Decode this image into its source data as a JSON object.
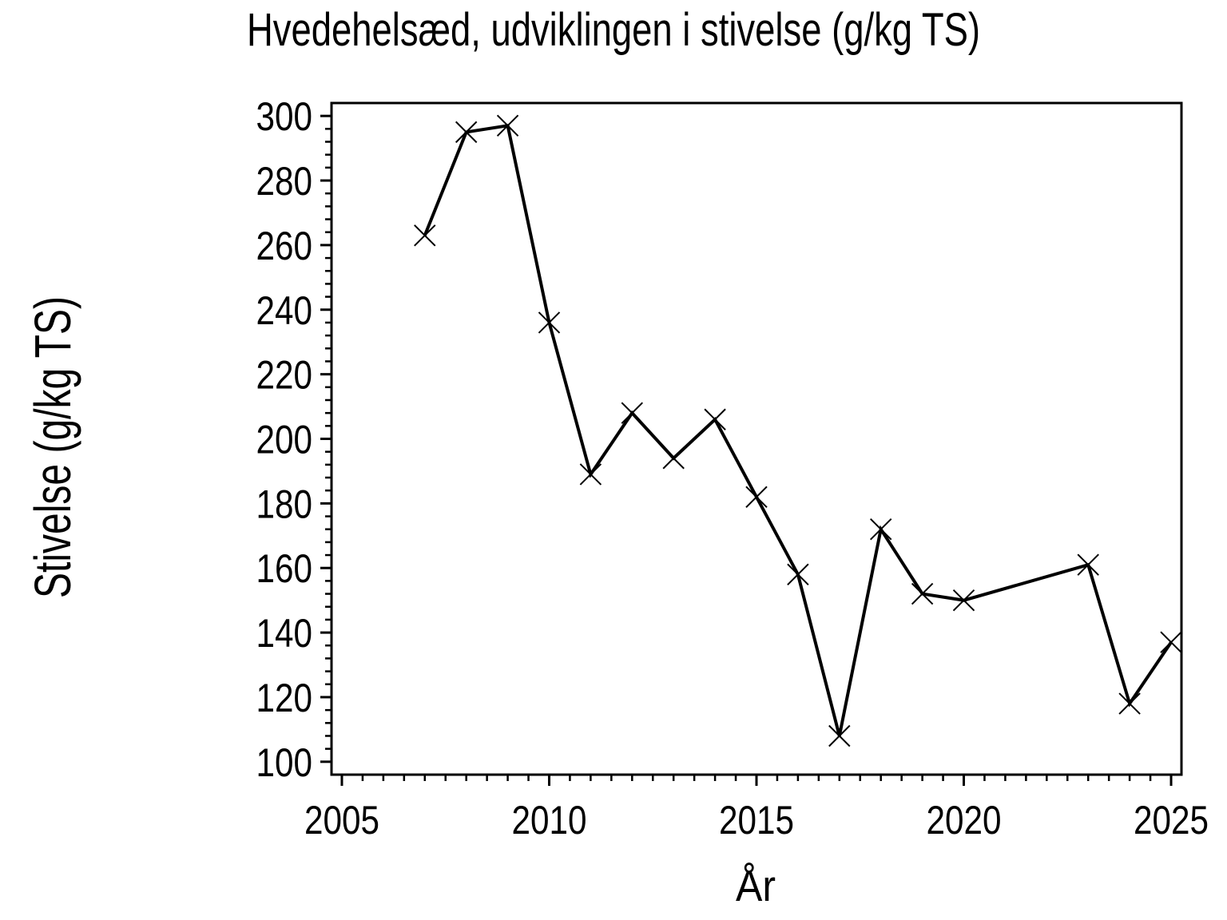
{
  "chart_data": {
    "type": "line",
    "title": "Hvedehelsæd, udviklingen i stivelse (g/kg TS)",
    "xlabel": "År",
    "ylabel": "Stivelse (g/kg TS)",
    "x": [
      2007,
      2008,
      2009,
      2010,
      2011,
      2012,
      2013,
      2014,
      2015,
      2016,
      2017,
      2018,
      2019,
      2020,
      2023,
      2024,
      2025
    ],
    "values": [
      263,
      295,
      297,
      236,
      189,
      208,
      194,
      206,
      182,
      158,
      108,
      172,
      152,
      150,
      161,
      118,
      137
    ],
    "xlim": [
      2004.75,
      2025.25
    ],
    "ylim": [
      96,
      304
    ],
    "x_major_ticks": [
      2005,
      2010,
      2015,
      2020,
      2025
    ],
    "x_minor_step": 0.5,
    "y_major_ticks": [
      100,
      120,
      140,
      160,
      180,
      200,
      220,
      240,
      260,
      280,
      300
    ],
    "y_minor_step": 4,
    "marker": "x",
    "line_color": "#000000",
    "background_color": "#ffffff",
    "grid": false,
    "legend": null
  }
}
